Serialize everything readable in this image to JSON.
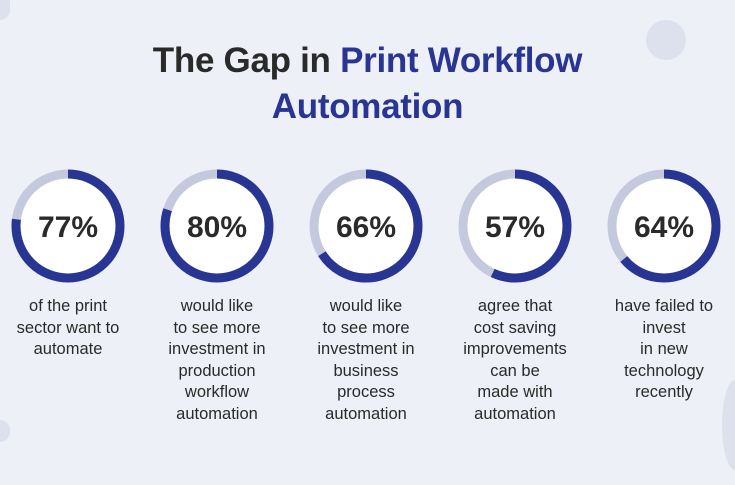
{
  "title": {
    "part1": "The Gap in ",
    "part2": "Print Workflow",
    "part3": "Automation"
  },
  "colors": {
    "accent": "#283593",
    "track": "#c5c9dd",
    "background": "#eef0f7"
  },
  "stats": [
    {
      "value": 77,
      "label": "77%",
      "text": "of the print\nsector want to\nautomate"
    },
    {
      "value": 80,
      "label": "80%",
      "text": "would like\nto see more\ninvestment in\nproduction\nworkflow\nautomation"
    },
    {
      "value": 66,
      "label": "66%",
      "text": "would like\nto see more\ninvestment in\nbusiness\nprocess\nautomation"
    },
    {
      "value": 57,
      "label": "57%",
      "text": "agree that\ncost saving\nimprovements\ncan be\nmade with\nautomation"
    },
    {
      "value": 64,
      "label": "64%",
      "text": "have failed to\ninvest\nin new\ntechnology\nrecently"
    }
  ]
}
